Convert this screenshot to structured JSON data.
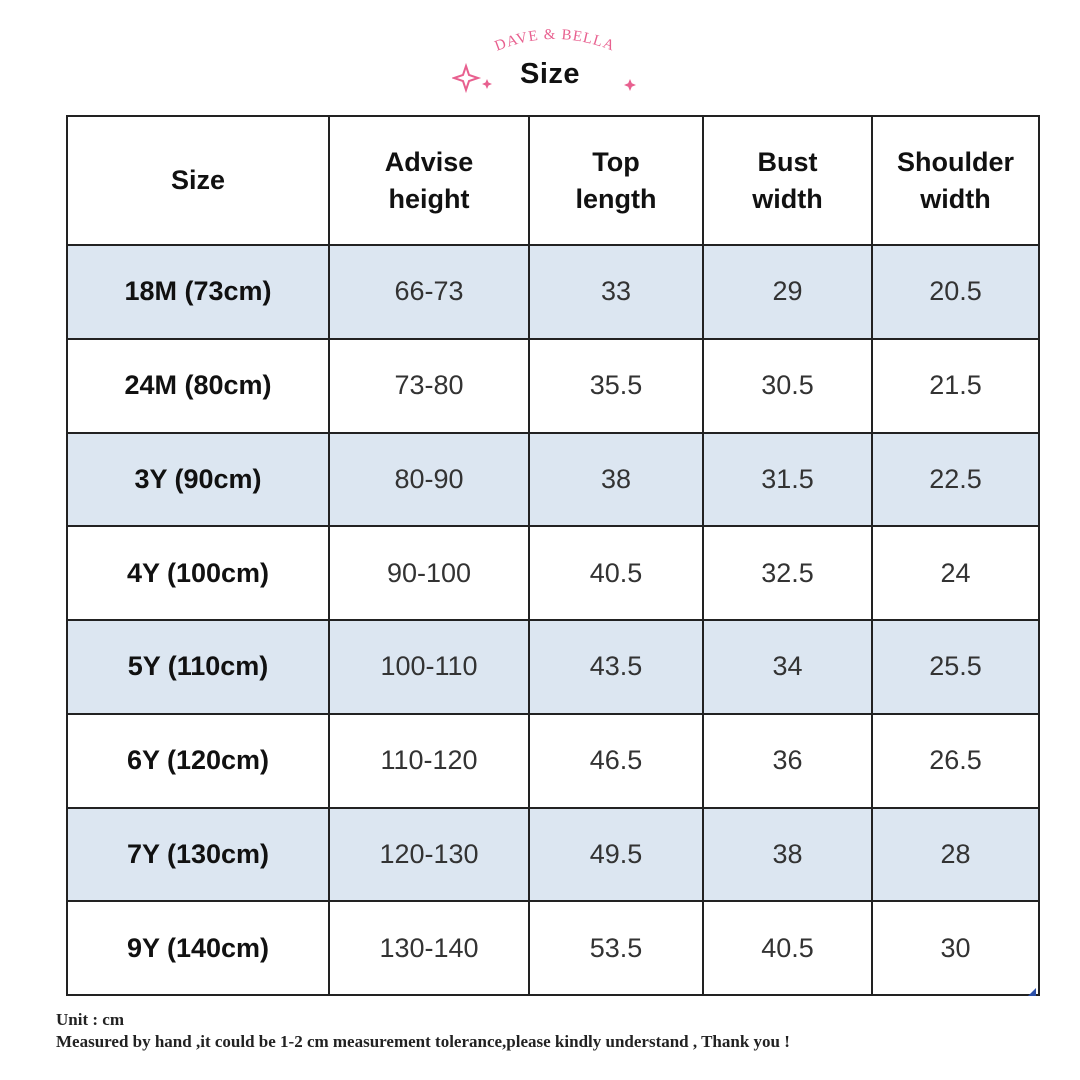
{
  "header": {
    "brand": "DAVE & BELLA",
    "title": "Size",
    "brand_color": "#e8608f",
    "sparkle_color": "#e8608f"
  },
  "table": {
    "columns": [
      {
        "line1": "Size",
        "line2": ""
      },
      {
        "line1": "Advise",
        "line2": "height"
      },
      {
        "line1": "Top",
        "line2": "length"
      },
      {
        "line1": "Bust",
        "line2": "width"
      },
      {
        "line1": "Shoulder",
        "line2": "width"
      }
    ],
    "rows": [
      {
        "size": "18M (73cm)",
        "advise_height": "66-73",
        "top_length": "33",
        "bust_width": "29",
        "shoulder_width": "20.5"
      },
      {
        "size": "24M (80cm)",
        "advise_height": "73-80",
        "top_length": "35.5",
        "bust_width": "30.5",
        "shoulder_width": "21.5"
      },
      {
        "size": "3Y (90cm)",
        "advise_height": "80-90",
        "top_length": "38",
        "bust_width": "31.5",
        "shoulder_width": "22.5"
      },
      {
        "size": "4Y (100cm)",
        "advise_height": "90-100",
        "top_length": "40.5",
        "bust_width": "32.5",
        "shoulder_width": "24"
      },
      {
        "size": "5Y (110cm)",
        "advise_height": "100-110",
        "top_length": "43.5",
        "bust_width": "34",
        "shoulder_width": "25.5"
      },
      {
        "size": "6Y (120cm)",
        "advise_height": "110-120",
        "top_length": "46.5",
        "bust_width": "36",
        "shoulder_width": "26.5"
      },
      {
        "size": "7Y (130cm)",
        "advise_height": "120-130",
        "top_length": "49.5",
        "bust_width": "38",
        "shoulder_width": "28"
      },
      {
        "size": "9Y (140cm)",
        "advise_height": "130-140",
        "top_length": "53.5",
        "bust_width": "40.5",
        "shoulder_width": "30"
      }
    ],
    "shade_color": "#dce6f1"
  },
  "notes": {
    "unit": "Unit : cm",
    "measurement": "Measured by hand ,it could be 1-2 cm measurement tolerance,please kindly understand , Thank you !"
  }
}
